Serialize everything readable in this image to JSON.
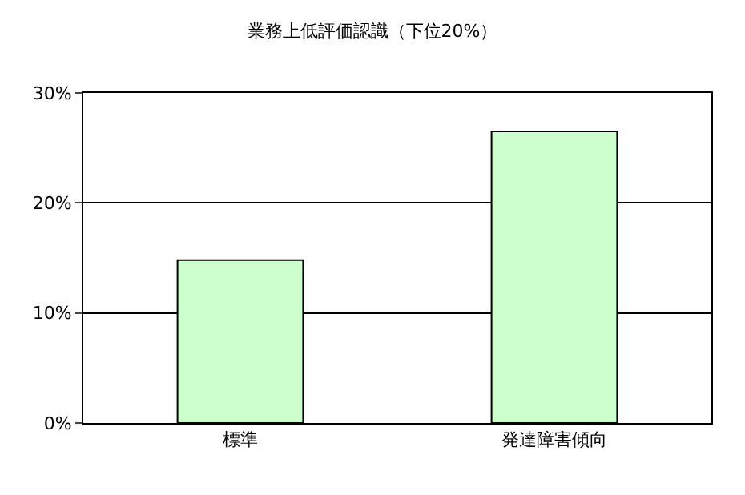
{
  "chart_data": {
    "type": "bar",
    "title": "業務上低評価認識（下位20%）",
    "categories": [
      "標準",
      "発達障害傾向"
    ],
    "series": [
      {
        "color": "#ccffcc",
        "values": [
          14.8,
          26.5
        ]
      }
    ],
    "ylim": [
      0,
      30
    ],
    "yticks": [
      {
        "value": 0,
        "label": "0%"
      },
      {
        "value": 10,
        "label": "10%"
      },
      {
        "value": 20,
        "label": "20%"
      },
      {
        "value": 30,
        "label": "30%"
      }
    ],
    "grid": "y"
  }
}
